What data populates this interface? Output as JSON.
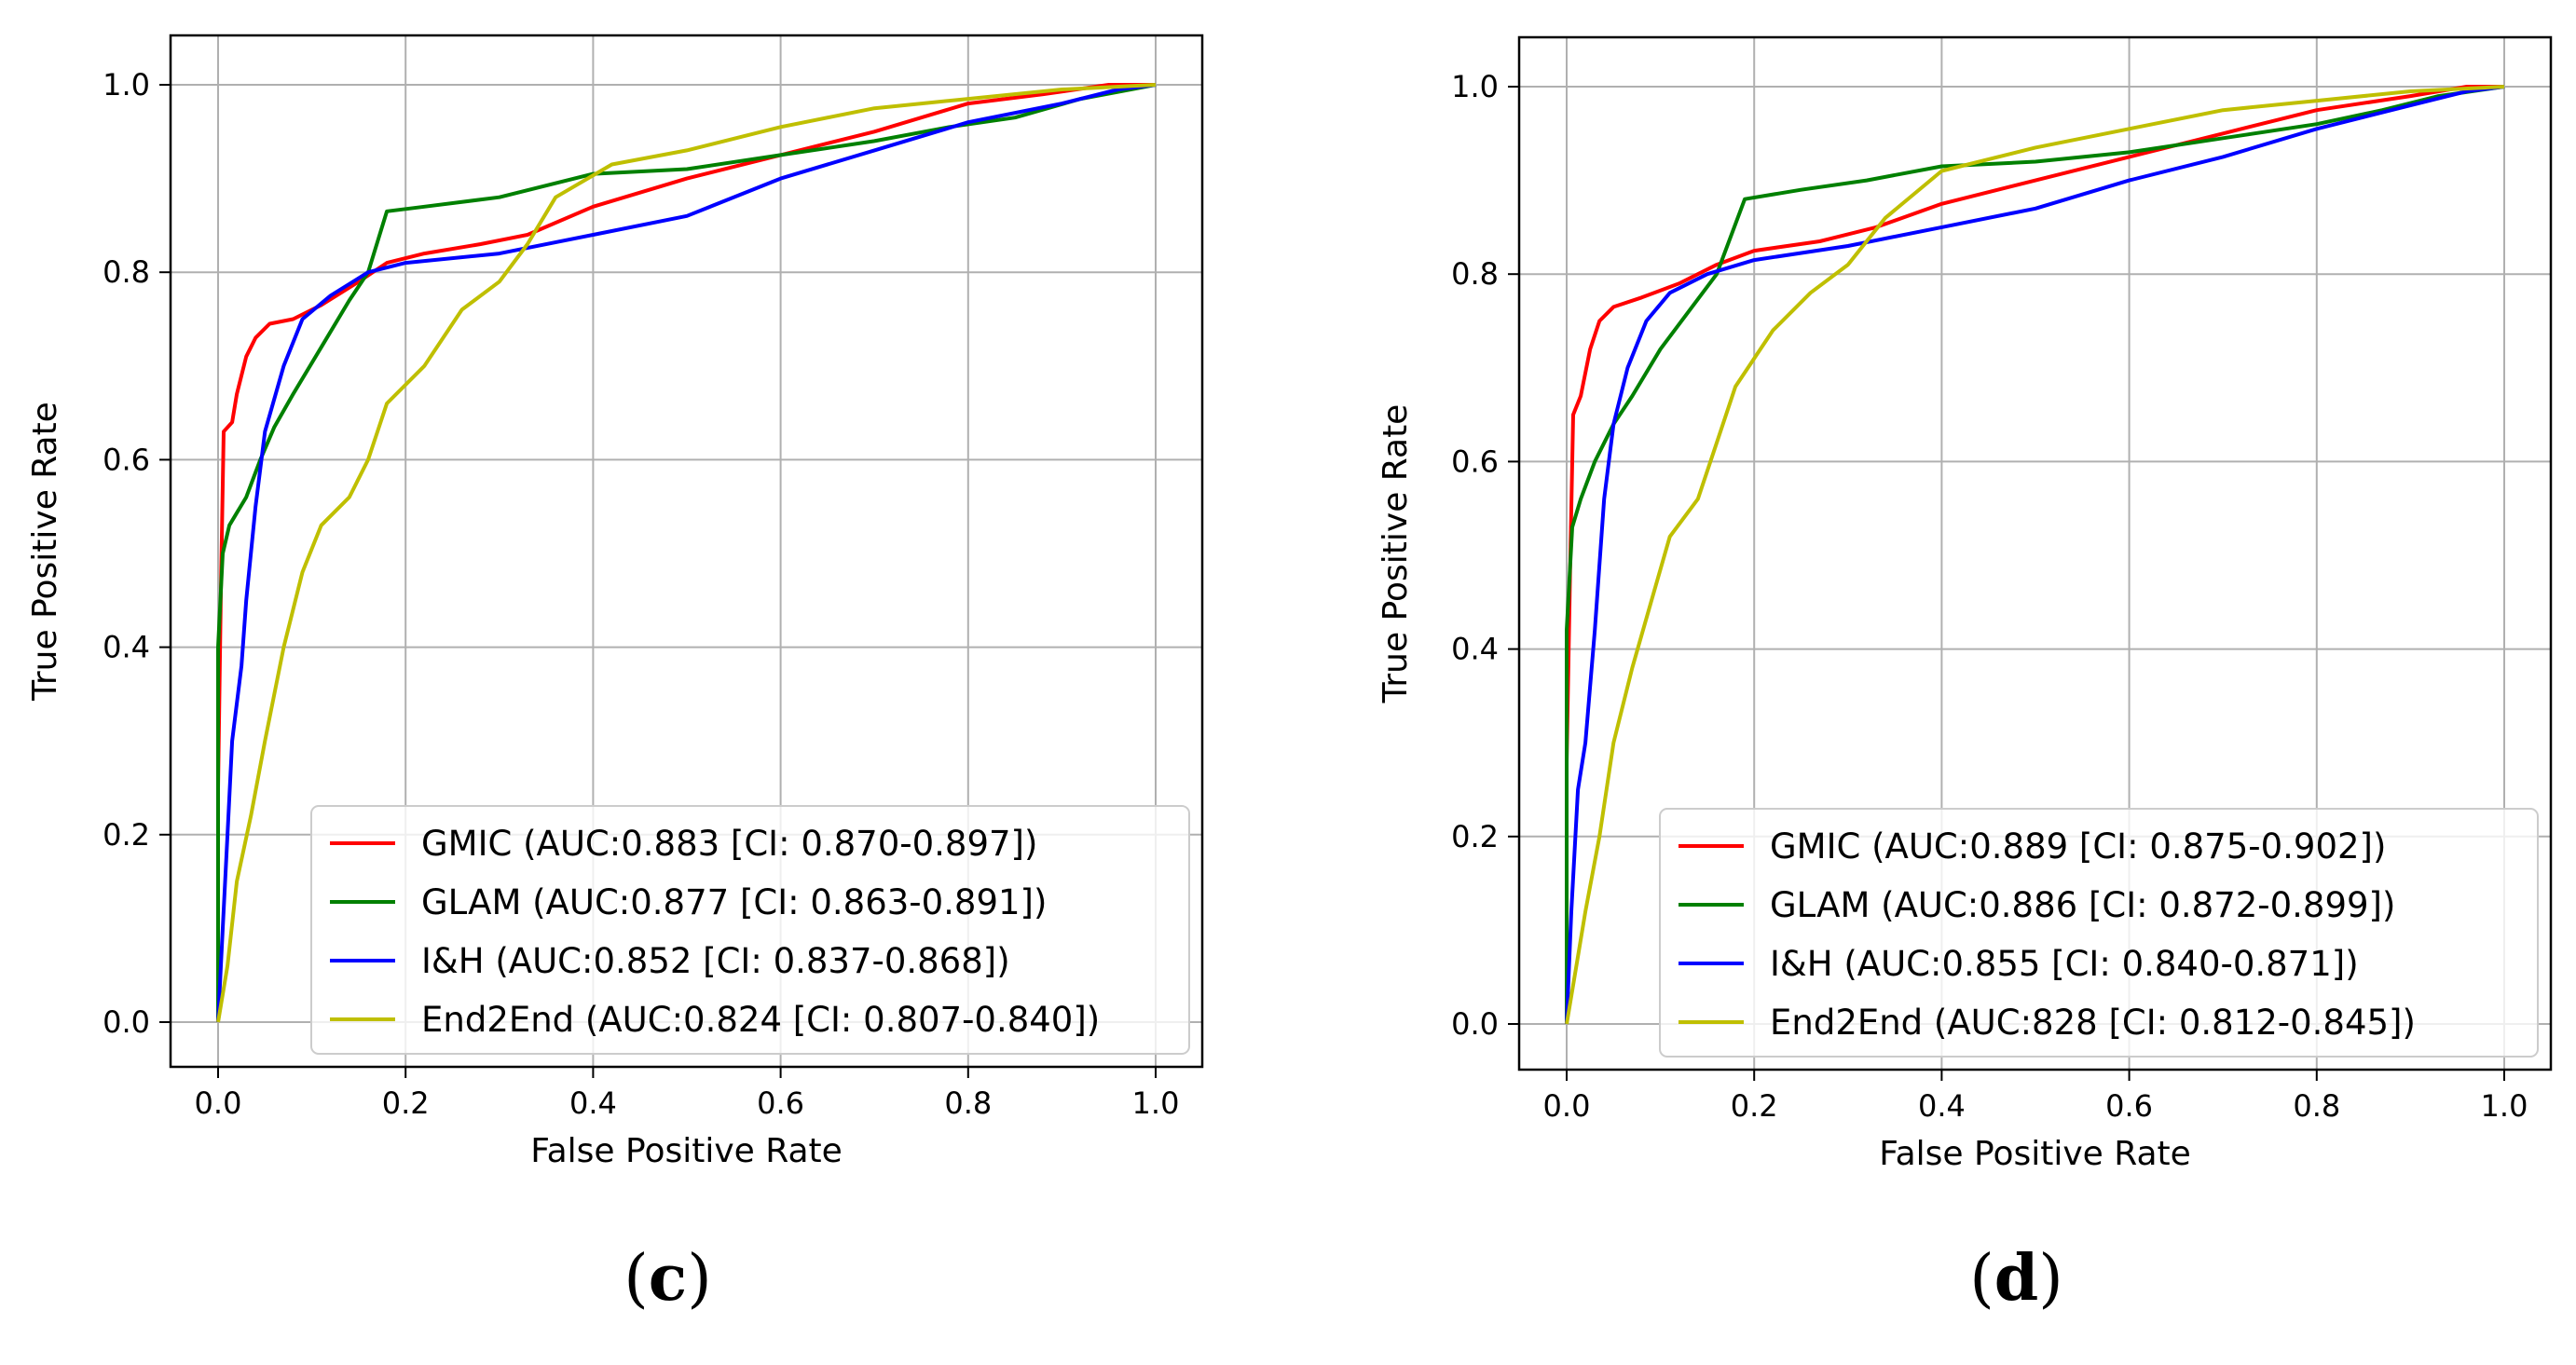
{
  "chart_data": [
    {
      "type": "line",
      "panel_label": "(c)",
      "panel_letter": "c",
      "xlabel": "False Positive Rate",
      "ylabel": "True Positive Rate",
      "xlim": [
        0.0,
        1.0
      ],
      "ylim": [
        0.0,
        1.0
      ],
      "xticks": [
        "0.0",
        "0.2",
        "0.4",
        "0.6",
        "0.8",
        "1.0"
      ],
      "yticks": [
        "0.0",
        "0.2",
        "0.4",
        "0.6",
        "0.8",
        "1.0"
      ],
      "grid": true,
      "legend_position": "lower-right",
      "series": [
        {
          "name": "GMIC (AUC:0.883 [CI: 0.870-0.897])",
          "color": "#ff0000",
          "points": [
            [
              0,
              0
            ],
            [
              0.0,
              0.25
            ],
            [
              0.003,
              0.46
            ],
            [
              0.006,
              0.63
            ],
            [
              0.015,
              0.64
            ],
            [
              0.02,
              0.67
            ],
            [
              0.03,
              0.71
            ],
            [
              0.04,
              0.73
            ],
            [
              0.055,
              0.745
            ],
            [
              0.08,
              0.75
            ],
            [
              0.11,
              0.765
            ],
            [
              0.15,
              0.79
            ],
            [
              0.18,
              0.81
            ],
            [
              0.22,
              0.82
            ],
            [
              0.28,
              0.83
            ],
            [
              0.33,
              0.84
            ],
            [
              0.4,
              0.87
            ],
            [
              0.5,
              0.9
            ],
            [
              0.6,
              0.925
            ],
            [
              0.7,
              0.95
            ],
            [
              0.8,
              0.98
            ],
            [
              0.88,
              0.99
            ],
            [
              0.95,
              1.0
            ],
            [
              1.0,
              1.0
            ]
          ]
        },
        {
          "name": "GLAM (AUC:0.877 [CI: 0.863-0.891])",
          "color": "#008000",
          "points": [
            [
              0,
              0
            ],
            [
              0.0,
              0.4
            ],
            [
              0.005,
              0.5
            ],
            [
              0.012,
              0.53
            ],
            [
              0.03,
              0.56
            ],
            [
              0.045,
              0.6
            ],
            [
              0.06,
              0.635
            ],
            [
              0.08,
              0.67
            ],
            [
              0.11,
              0.72
            ],
            [
              0.14,
              0.77
            ],
            [
              0.16,
              0.8
            ],
            [
              0.18,
              0.865
            ],
            [
              0.22,
              0.87
            ],
            [
              0.3,
              0.88
            ],
            [
              0.4,
              0.905
            ],
            [
              0.5,
              0.91
            ],
            [
              0.6,
              0.925
            ],
            [
              0.7,
              0.94
            ],
            [
              0.78,
              0.955
            ],
            [
              0.85,
              0.965
            ],
            [
              0.92,
              0.985
            ],
            [
              1.0,
              1.0
            ]
          ]
        },
        {
          "name": "I&H (AUC:0.852 [CI: 0.837-0.868])",
          "color": "#0000ff",
          "points": [
            [
              0,
              0
            ],
            [
              0.005,
              0.1
            ],
            [
              0.01,
              0.2
            ],
            [
              0.015,
              0.3
            ],
            [
              0.025,
              0.38
            ],
            [
              0.03,
              0.45
            ],
            [
              0.04,
              0.55
            ],
            [
              0.05,
              0.63
            ],
            [
              0.07,
              0.7
            ],
            [
              0.09,
              0.75
            ],
            [
              0.12,
              0.775
            ],
            [
              0.16,
              0.8
            ],
            [
              0.2,
              0.81
            ],
            [
              0.3,
              0.82
            ],
            [
              0.4,
              0.84
            ],
            [
              0.5,
              0.86
            ],
            [
              0.6,
              0.9
            ],
            [
              0.7,
              0.93
            ],
            [
              0.8,
              0.96
            ],
            [
              0.9,
              0.98
            ],
            [
              0.96,
              0.995
            ],
            [
              1.0,
              1.0
            ]
          ]
        },
        {
          "name": "End2End (AUC:0.824 [CI: 0.807-0.840])",
          "color": "#bfbf00",
          "points": [
            [
              0,
              0
            ],
            [
              0.01,
              0.06
            ],
            [
              0.02,
              0.15
            ],
            [
              0.035,
              0.22
            ],
            [
              0.05,
              0.3
            ],
            [
              0.07,
              0.4
            ],
            [
              0.09,
              0.48
            ],
            [
              0.11,
              0.53
            ],
            [
              0.14,
              0.56
            ],
            [
              0.16,
              0.6
            ],
            [
              0.18,
              0.66
            ],
            [
              0.22,
              0.7
            ],
            [
              0.26,
              0.76
            ],
            [
              0.3,
              0.79
            ],
            [
              0.33,
              0.83
            ],
            [
              0.36,
              0.88
            ],
            [
              0.42,
              0.915
            ],
            [
              0.5,
              0.93
            ],
            [
              0.6,
              0.955
            ],
            [
              0.7,
              0.975
            ],
            [
              0.8,
              0.985
            ],
            [
              0.9,
              0.995
            ],
            [
              1.0,
              1.0
            ]
          ]
        }
      ]
    },
    {
      "type": "line",
      "panel_label": "(d)",
      "panel_letter": "d",
      "xlabel": "False Positive Rate",
      "ylabel": "True Positive Rate",
      "xlim": [
        0.0,
        1.0
      ],
      "ylim": [
        0.0,
        1.0
      ],
      "xticks": [
        "0.0",
        "0.2",
        "0.4",
        "0.6",
        "0.8",
        "1.0"
      ],
      "yticks": [
        "0.0",
        "0.2",
        "0.4",
        "0.6",
        "0.8",
        "1.0"
      ],
      "grid": true,
      "legend_position": "lower-right",
      "series": [
        {
          "name": "GMIC (AUC:0.889 [CI: 0.875-0.902])",
          "color": "#ff0000",
          "points": [
            [
              0,
              0
            ],
            [
              0.0,
              0.28
            ],
            [
              0.004,
              0.5
            ],
            [
              0.007,
              0.65
            ],
            [
              0.015,
              0.67
            ],
            [
              0.025,
              0.72
            ],
            [
              0.035,
              0.75
            ],
            [
              0.05,
              0.765
            ],
            [
              0.08,
              0.775
            ],
            [
              0.12,
              0.79
            ],
            [
              0.16,
              0.81
            ],
            [
              0.2,
              0.825
            ],
            [
              0.27,
              0.835
            ],
            [
              0.33,
              0.85
            ],
            [
              0.4,
              0.875
            ],
            [
              0.5,
              0.9
            ],
            [
              0.6,
              0.925
            ],
            [
              0.7,
              0.95
            ],
            [
              0.8,
              0.975
            ],
            [
              0.9,
              0.99
            ],
            [
              0.96,
              1.0
            ],
            [
              1.0,
              1.0
            ]
          ]
        },
        {
          "name": "GLAM (AUC:0.886 [CI: 0.872-0.899])",
          "color": "#008000",
          "points": [
            [
              0,
              0
            ],
            [
              0.0,
              0.42
            ],
            [
              0.006,
              0.53
            ],
            [
              0.015,
              0.56
            ],
            [
              0.03,
              0.6
            ],
            [
              0.05,
              0.64
            ],
            [
              0.07,
              0.67
            ],
            [
              0.1,
              0.72
            ],
            [
              0.13,
              0.76
            ],
            [
              0.16,
              0.8
            ],
            [
              0.19,
              0.88
            ],
            [
              0.25,
              0.89
            ],
            [
              0.32,
              0.9
            ],
            [
              0.4,
              0.915
            ],
            [
              0.5,
              0.92
            ],
            [
              0.6,
              0.93
            ],
            [
              0.7,
              0.945
            ],
            [
              0.8,
              0.96
            ],
            [
              0.87,
              0.975
            ],
            [
              0.93,
              0.99
            ],
            [
              1.0,
              1.0
            ]
          ]
        },
        {
          "name": "I&H (AUC:0.855 [CI: 0.840-0.871])",
          "color": "#0000ff",
          "points": [
            [
              0,
              0
            ],
            [
              0.005,
              0.12
            ],
            [
              0.012,
              0.25
            ],
            [
              0.02,
              0.3
            ],
            [
              0.03,
              0.42
            ],
            [
              0.04,
              0.56
            ],
            [
              0.05,
              0.64
            ],
            [
              0.065,
              0.7
            ],
            [
              0.085,
              0.75
            ],
            [
              0.11,
              0.78
            ],
            [
              0.15,
              0.8
            ],
            [
              0.2,
              0.815
            ],
            [
              0.3,
              0.83
            ],
            [
              0.4,
              0.85
            ],
            [
              0.5,
              0.87
            ],
            [
              0.6,
              0.9
            ],
            [
              0.7,
              0.925
            ],
            [
              0.8,
              0.955
            ],
            [
              0.9,
              0.98
            ],
            [
              0.96,
              0.995
            ],
            [
              1.0,
              1.0
            ]
          ]
        },
        {
          "name": "End2End (AUC:828 [CI: 0.812-0.845])",
          "color": "#bfbf00",
          "points": [
            [
              0,
              0
            ],
            [
              0.01,
              0.06
            ],
            [
              0.02,
              0.12
            ],
            [
              0.035,
              0.2
            ],
            [
              0.05,
              0.3
            ],
            [
              0.07,
              0.38
            ],
            [
              0.09,
              0.45
            ],
            [
              0.11,
              0.52
            ],
            [
              0.14,
              0.56
            ],
            [
              0.16,
              0.62
            ],
            [
              0.18,
              0.68
            ],
            [
              0.22,
              0.74
            ],
            [
              0.26,
              0.78
            ],
            [
              0.3,
              0.81
            ],
            [
              0.34,
              0.86
            ],
            [
              0.4,
              0.91
            ],
            [
              0.5,
              0.935
            ],
            [
              0.6,
              0.955
            ],
            [
              0.7,
              0.975
            ],
            [
              0.8,
              0.985
            ],
            [
              0.9,
              0.995
            ],
            [
              1.0,
              1.0
            ]
          ]
        }
      ]
    }
  ]
}
